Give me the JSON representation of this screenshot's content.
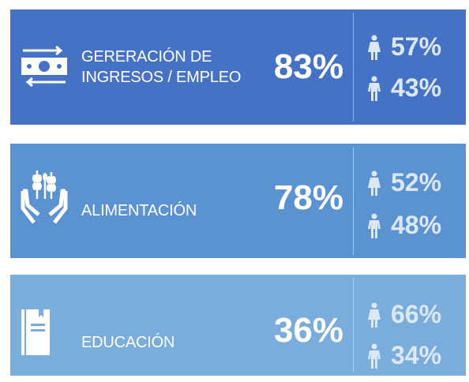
{
  "cards": [
    {
      "label": [
        "GERERACIÓN DE",
        "INGRESOS / EMPLEO"
      ],
      "total": "83%",
      "female": "57%",
      "male": "43%"
    },
    {
      "label": [
        "ALIMENTACIÓN"
      ],
      "total": "78%",
      "female": "52%",
      "male": "48%"
    },
    {
      "label": [
        "EDUCACIÓN"
      ],
      "total": "36%",
      "female": "66%",
      "male": "34%"
    }
  ]
}
